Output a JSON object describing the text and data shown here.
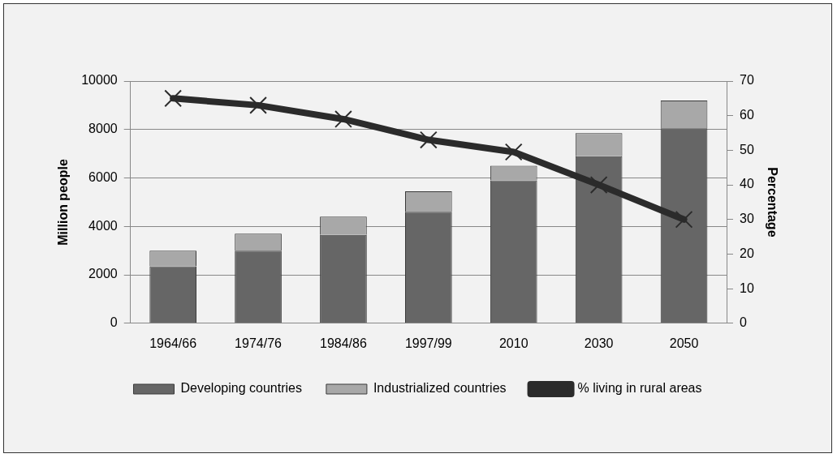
{
  "chart_data": {
    "type": "bar",
    "stacked": true,
    "categories": [
      "1964/66",
      "1974/76",
      "1984/86",
      "1997/99",
      "2010",
      "2030",
      "2050"
    ],
    "ylabel": "Million people",
    "y2label": "Percentage",
    "series": [
      {
        "name": "Developing countries",
        "color": "#666666",
        "values": [
          2350,
          3000,
          3650,
          4600,
          5900,
          6900,
          8050
        ]
      },
      {
        "name": "Industrialized countries",
        "color": "#a8a8a8",
        "values": [
          650,
          700,
          750,
          850,
          600,
          950,
          1150
        ]
      },
      {
        "name": "% living in rural areas",
        "type": "line",
        "axis": "y2",
        "color": "#2b2b2b",
        "marker": "cross",
        "values": [
          65,
          63,
          59,
          53,
          49.5,
          40,
          30
        ]
      }
    ],
    "ylim": [
      0,
      10000
    ],
    "yticks": [
      0,
      2000,
      4000,
      6000,
      8000,
      10000
    ],
    "y2lim": [
      0,
      70
    ],
    "y2ticks": [
      0,
      10,
      20,
      30,
      40,
      50,
      60,
      70
    ],
    "grid": "y",
    "legend": "bottom"
  }
}
